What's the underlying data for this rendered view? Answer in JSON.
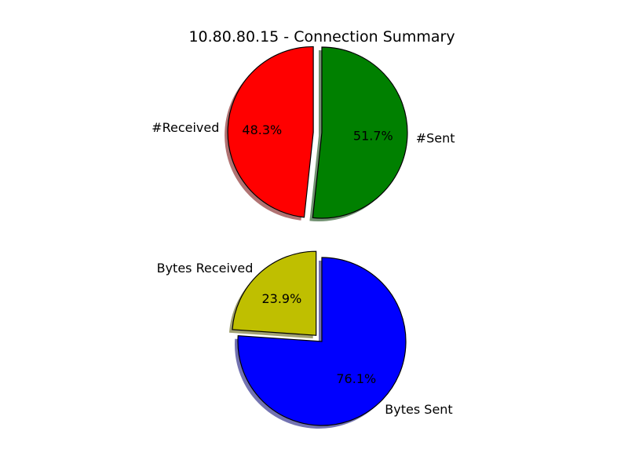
{
  "chart_data": {
    "type": "pie",
    "title": "10.80.80.15 - Connection Summary",
    "pies": [
      {
        "slices": [
          {
            "label": "#Received",
            "pct_label": "48.3%",
            "value": 48.3,
            "color": "#ff0000",
            "explode": true
          },
          {
            "label": "#Sent",
            "pct_label": "51.7%",
            "value": 51.7,
            "color": "#008000",
            "explode": false
          }
        ],
        "shadow": true
      },
      {
        "slices": [
          {
            "label": "Bytes Received",
            "pct_label": "23.9%",
            "value": 23.9,
            "color": "#bfbf00",
            "explode": true
          },
          {
            "label": "Bytes Sent",
            "pct_label": "76.1%",
            "value": 76.1,
            "color": "#0000ff",
            "explode": false
          }
        ],
        "shadow": true
      }
    ]
  }
}
